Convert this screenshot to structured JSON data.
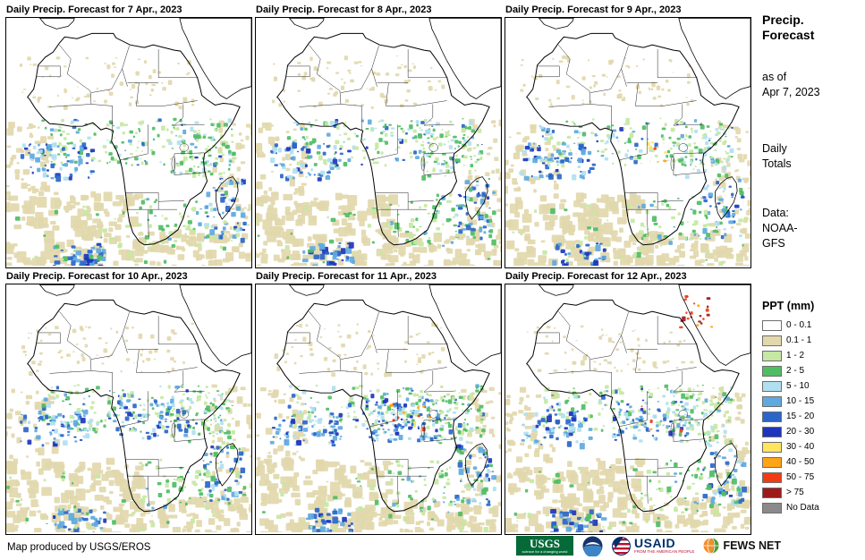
{
  "panels": [
    {
      "title": "Daily Precip. Forecast for 7 Apr., 2023"
    },
    {
      "title": "Daily Precip. Forecast for 8 Apr., 2023"
    },
    {
      "title": "Daily Precip. Forecast for 9 Apr., 2023"
    },
    {
      "title": "Daily Precip. Forecast for 10 Apr., 2023"
    },
    {
      "title": "Daily Precip. Forecast for 11 Apr., 2023"
    },
    {
      "title": "Daily Precip. Forecast for 12 Apr., 2023"
    }
  ],
  "sidebar": {
    "title": "Precip. Forecast",
    "as_of_label": "as of",
    "as_of_date": "Apr 7, 2023",
    "totals_label": "Daily Totals",
    "data_label": "Data:",
    "data_value": "NOAA-GFS",
    "legend": {
      "title": "PPT (mm)",
      "items": [
        {
          "label": "0 - 0.1",
          "color": "#FFFFFF"
        },
        {
          "label": "0.1 - 1",
          "color": "#E2D8AC"
        },
        {
          "label": "1 - 2",
          "color": "#C6E8A2"
        },
        {
          "label": "2 - 5",
          "color": "#4FBD64"
        },
        {
          "label": "5 - 10",
          "color": "#B0E0F0"
        },
        {
          "label": "10 - 15",
          "color": "#5EA9DF"
        },
        {
          "label": "15 - 20",
          "color": "#2A66C9"
        },
        {
          "label": "20 - 30",
          "color": "#1D35BC"
        },
        {
          "label": "30 - 40",
          "color": "#FFE45E"
        },
        {
          "label": "40 - 50",
          "color": "#FFA317"
        },
        {
          "label": "50 - 75",
          "color": "#F23A15"
        },
        {
          "label": "> 75",
          "color": "#9E1A1A"
        },
        {
          "label": "No Data",
          "color": "#8A8A8A"
        }
      ]
    }
  },
  "footer": {
    "credit": "Map produced by USGS/EROS",
    "logos": [
      {
        "name": "USGS",
        "tagline": "science for a changing world"
      },
      {
        "name": "NOAA"
      },
      {
        "name": "USAID",
        "tagline": "FROM THE AMERICAN PEOPLE"
      },
      {
        "name": "FEWS NET"
      }
    ]
  }
}
